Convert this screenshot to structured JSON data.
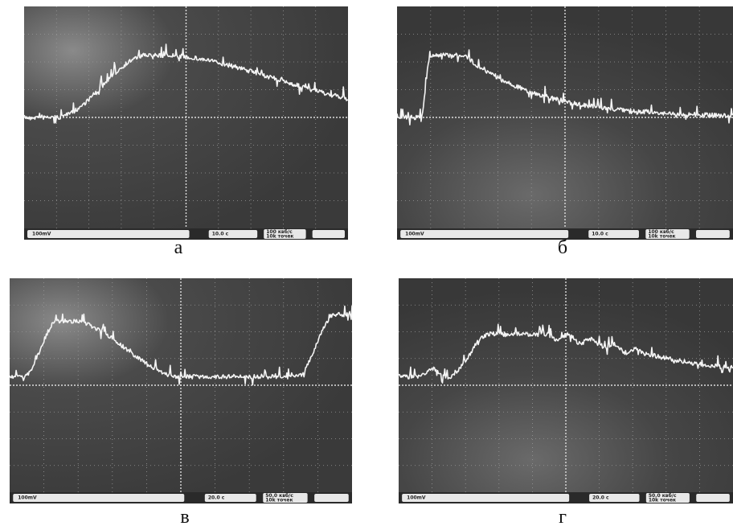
{
  "panels": [
    {
      "label": "а",
      "readouts": [
        "100mV",
        "10.0 с",
        "100 квб/с",
        "10k точек"
      ]
    },
    {
      "label": "б",
      "readouts": [
        "100mV",
        "10.0 с",
        "100 квб/с",
        "10k точек"
      ]
    },
    {
      "label": "в",
      "readouts": [
        "100mV",
        "20.0 с",
        "50.0 квб/с",
        "10k точек"
      ]
    },
    {
      "label": "г",
      "readouts": [
        "100mV",
        "20.0 с",
        "50.0 квб/с",
        "10k точек"
      ]
    }
  ]
}
